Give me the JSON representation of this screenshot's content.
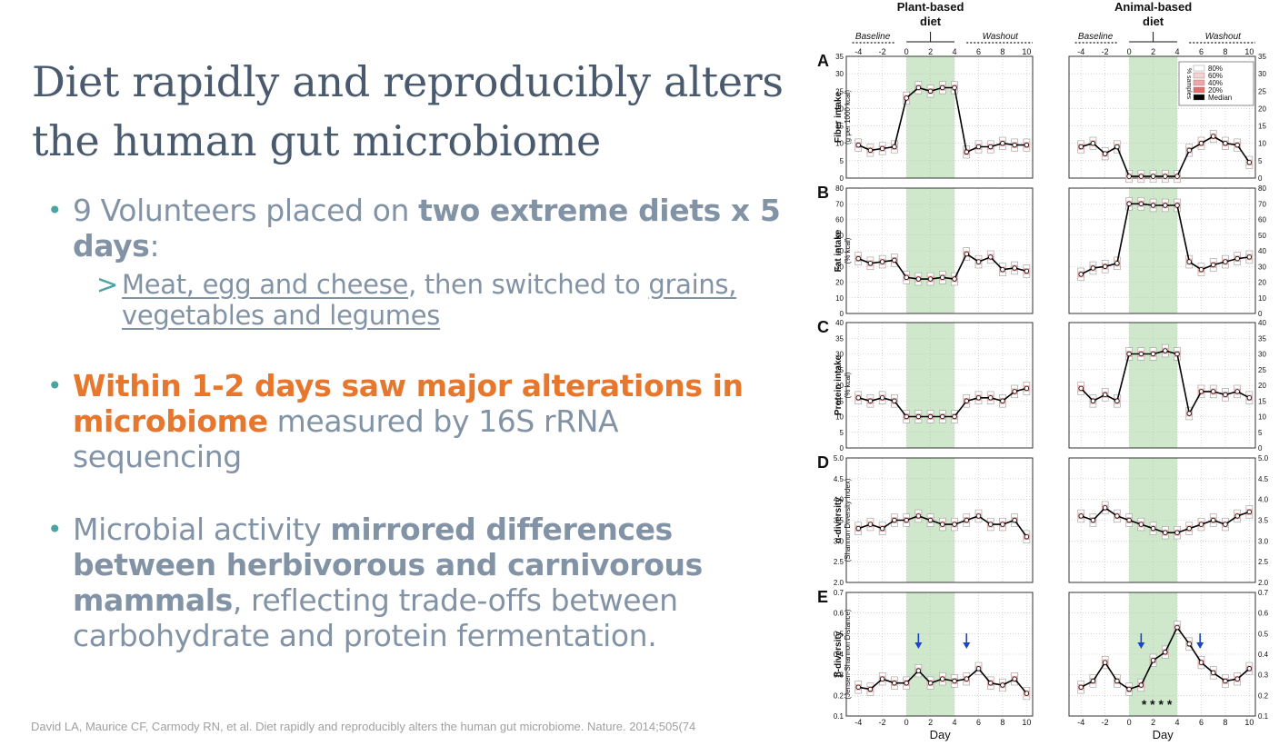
{
  "title": "Diet rapidly and reproducibly alters the human gut microbiome",
  "bullets": {
    "b1": {
      "pre": "9 Volunteers placed on ",
      "strong": "two extreme diets x 5 days",
      "post": ":"
    },
    "b1_sub": {
      "arrow": ">",
      "u1": "Meat, egg and cheese",
      "mid": ", then switched to ",
      "u2": "grains, vegetables and legumes"
    },
    "b2": {
      "orange": "Within 1-2 days saw major alterations in microbiome",
      "post": " measured by 16S rRNA sequencing"
    },
    "b3": {
      "pre": "Microbial activity ",
      "strong": "mirrored differences between herbivorous and carnivorous mammals",
      "post": ", reflecting trade-offs between carbohydrate and protein fermentation."
    }
  },
  "citation": "David LA, Maurice CF, Carmody RN, et al. Diet rapidly and reproducibly alters the human gut microbiome. Nature. 2014;505(74",
  "figure": {
    "columns": [
      {
        "title1": "Plant-based",
        "title2": "diet",
        "baseline": "Baseline",
        "washout": "Washout"
      },
      {
        "title1": "Animal-based",
        "title2": "diet",
        "baseline": "Baseline",
        "washout": "Washout"
      }
    ],
    "xticks": [
      "-4",
      "-2",
      "0",
      "2",
      "4",
      "6",
      "8",
      "10"
    ],
    "xlabel": "Day",
    "legend": {
      "title": "% samples",
      "items": [
        "80%",
        "60%",
        "40%",
        "20%",
        "Median"
      ],
      "colors": [
        "#ffffff",
        "#f7d2d2",
        "#f0a6a6",
        "#e06c6c",
        "#000000"
      ]
    },
    "significance": "* * * *",
    "diet_band_color": "#cfe8cc"
  },
  "chart_data": [
    {
      "type": "line",
      "panel": "A",
      "title": "",
      "ylabel": "Fiber intake",
      "ylabel_sub": "(g per 1000 kcal)",
      "ylim": [
        0,
        35
      ],
      "yticks": [
        "0",
        "5",
        "10",
        "15",
        "20",
        "25",
        "30",
        "35"
      ],
      "x": [
        -4,
        -3,
        -2,
        -1,
        0,
        1,
        2,
        3,
        4,
        5,
        6,
        7,
        8,
        9,
        10
      ],
      "series": [
        {
          "name": "Plant-based diet",
          "values": [
            9.5,
            8,
            8.5,
            9,
            23,
            26,
            25,
            26,
            26,
            7.5,
            9,
            9,
            10,
            9.5,
            9.5
          ]
        },
        {
          "name": "Animal-based diet",
          "values": [
            9,
            10,
            7,
            9,
            0.5,
            0.5,
            0.5,
            0.5,
            0.5,
            8,
            10,
            12,
            10,
            9.5,
            4.5
          ]
        }
      ]
    },
    {
      "type": "line",
      "panel": "B",
      "title": "",
      "ylabel": "Fat intake",
      "ylabel_sub": "(% kcal)",
      "ylim": [
        0,
        80
      ],
      "yticks": [
        "0",
        "10",
        "20",
        "30",
        "40",
        "50",
        "60",
        "70",
        "80"
      ],
      "x": [
        -4,
        -3,
        -2,
        -1,
        0,
        1,
        2,
        3,
        4,
        5,
        6,
        7,
        8,
        9,
        10
      ],
      "series": [
        {
          "name": "Plant-based diet",
          "values": [
            35,
            32,
            33,
            34,
            23,
            22,
            22,
            23,
            22,
            38,
            33,
            36,
            28,
            29,
            27
          ]
        },
        {
          "name": "Animal-based diet",
          "values": [
            25,
            29,
            30,
            32,
            70,
            70,
            69,
            69,
            69,
            33,
            28,
            31,
            33,
            35,
            36
          ]
        }
      ]
    },
    {
      "type": "line",
      "panel": "C",
      "title": "",
      "ylabel": "Protein intake",
      "ylabel_sub": "(% kcal)",
      "ylim": [
        0,
        40
      ],
      "yticks": [
        "0",
        "5",
        "10",
        "15",
        "20",
        "25",
        "30",
        "35",
        "40"
      ],
      "x": [
        -4,
        -3,
        -2,
        -1,
        0,
        1,
        2,
        3,
        4,
        5,
        6,
        7,
        8,
        9,
        10
      ],
      "series": [
        {
          "name": "Plant-based diet",
          "values": [
            16,
            15,
            16,
            15,
            10,
            10,
            10,
            10,
            10,
            15,
            16,
            16,
            15,
            18,
            19
          ]
        },
        {
          "name": "Animal-based diet",
          "values": [
            19,
            15,
            17,
            15,
            30,
            30,
            30,
            31,
            30,
            11,
            18,
            18,
            17,
            18,
            16
          ]
        }
      ]
    },
    {
      "type": "line",
      "panel": "D",
      "title": "",
      "ylabel": "α-diversity",
      "ylabel_sub": "(Shannon Diversity Index)",
      "ylim": [
        2,
        5
      ],
      "yticks": [
        "2.0",
        "2.5",
        "3.0",
        "3.5",
        "4.0",
        "4.5",
        "5.0"
      ],
      "x": [
        -4,
        -3,
        -2,
        -1,
        0,
        1,
        2,
        3,
        4,
        5,
        6,
        7,
        8,
        9,
        10
      ],
      "series": [
        {
          "name": "Plant-based diet",
          "values": [
            3.3,
            3.4,
            3.3,
            3.5,
            3.5,
            3.6,
            3.5,
            3.4,
            3.4,
            3.5,
            3.6,
            3.4,
            3.4,
            3.5,
            3.1
          ]
        },
        {
          "name": "Animal-based diet",
          "values": [
            3.6,
            3.5,
            3.8,
            3.6,
            3.5,
            3.4,
            3.3,
            3.2,
            3.2,
            3.3,
            3.4,
            3.5,
            3.4,
            3.6,
            3.7
          ]
        }
      ]
    },
    {
      "type": "line",
      "panel": "E",
      "title": "",
      "ylabel": "β-diversity",
      "ylabel_sub": "(Jensen-Shannon Distance)",
      "ylim": [
        0.1,
        0.7
      ],
      "yticks": [
        "0.1",
        "0.2",
        "0.3",
        "0.4",
        "0.5",
        "0.6",
        "0.7"
      ],
      "x": [
        -4,
        -3,
        -2,
        -1,
        0,
        1,
        2,
        3,
        4,
        5,
        6,
        7,
        8,
        9,
        10
      ],
      "series": [
        {
          "name": "Plant-based diet",
          "values": [
            0.24,
            0.23,
            0.28,
            0.26,
            0.26,
            0.32,
            0.26,
            0.28,
            0.27,
            0.28,
            0.33,
            0.26,
            0.25,
            0.28,
            0.21
          ]
        },
        {
          "name": "Animal-based diet",
          "values": [
            0.24,
            0.27,
            0.36,
            0.27,
            0.23,
            0.25,
            0.37,
            0.41,
            0.53,
            0.45,
            0.36,
            0.31,
            0.27,
            0.28,
            0.33
          ]
        }
      ]
    }
  ]
}
